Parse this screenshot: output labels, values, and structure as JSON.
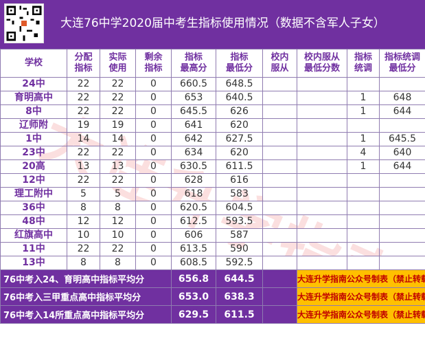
{
  "title": "大连76中学2020届中考生指标使用情况（数据不含军人子女）",
  "header": {
    "school": "学校",
    "alloc": [
      "分配",
      "指标"
    ],
    "used": [
      "实际",
      "使用"
    ],
    "remain": [
      "剩余",
      "指标"
    ],
    "max": [
      "指标",
      "最高分"
    ],
    "min": [
      "指标",
      "最低分"
    ],
    "in_school": [
      "校内",
      "服从"
    ],
    "in_school_min": [
      "校内服从",
      "最低分数"
    ],
    "adjust": [
      "指标",
      "统调"
    ],
    "adjust_min": [
      "指标统调",
      "最低分"
    ]
  },
  "rows": [
    {
      "school": "24中",
      "alloc": "22",
      "used": "22",
      "remain": "0",
      "max": "660.5",
      "min": "648.5",
      "adjust": "",
      "adjust_min": ""
    },
    {
      "school": "育明高中",
      "alloc": "22",
      "used": "22",
      "remain": "0",
      "max": "653",
      "min": "640.5",
      "adjust": "1",
      "adjust_min": "648"
    },
    {
      "school": "8中",
      "alloc": "22",
      "used": "22",
      "remain": "0",
      "max": "645.5",
      "min": "626",
      "adjust": "1",
      "adjust_min": "644"
    },
    {
      "school": "辽师附",
      "alloc": "19",
      "used": "19",
      "remain": "0",
      "max": "641",
      "min": "620",
      "adjust": "",
      "adjust_min": ""
    },
    {
      "school": "1中",
      "alloc": "14",
      "used": "14",
      "remain": "0",
      "max": "642",
      "min": "627.5",
      "adjust": "1",
      "adjust_min": "645.5"
    },
    {
      "school": "23中",
      "alloc": "22",
      "used": "22",
      "remain": "0",
      "max": "634",
      "min": "620",
      "adjust": "4",
      "adjust_min": "640"
    },
    {
      "school": "20高",
      "alloc": "13",
      "used": "13",
      "remain": "0",
      "max": "630.5",
      "min": "611.5",
      "adjust": "1",
      "adjust_min": "644"
    },
    {
      "school": "12中",
      "alloc": "22",
      "used": "22",
      "remain": "0",
      "max": "628",
      "min": "616",
      "adjust": "",
      "adjust_min": ""
    },
    {
      "school": "理工附中",
      "alloc": "5",
      "used": "5",
      "remain": "0",
      "max": "618",
      "min": "583",
      "adjust": "",
      "adjust_min": ""
    },
    {
      "school": "36中",
      "alloc": "8",
      "used": "8",
      "remain": "0",
      "max": "620.5",
      "min": "604.5",
      "adjust": "",
      "adjust_min": ""
    },
    {
      "school": "48中",
      "alloc": "12",
      "used": "12",
      "remain": "0",
      "max": "612.5",
      "min": "593.5",
      "adjust": "",
      "adjust_min": ""
    },
    {
      "school": "红旗高中",
      "alloc": "10",
      "used": "10",
      "remain": "0",
      "max": "606",
      "min": "587",
      "adjust": "",
      "adjust_min": ""
    },
    {
      "school": "11中",
      "alloc": "22",
      "used": "22",
      "remain": "0",
      "max": "613.5",
      "min": "590",
      "adjust": "",
      "adjust_min": ""
    },
    {
      "school": "13中",
      "alloc": "8",
      "used": "8",
      "remain": "0",
      "max": "608.5",
      "min": "592.5",
      "adjust": "",
      "adjust_min": ""
    }
  ],
  "summary": [
    {
      "label": "76中考入24、育明高中指标平均分",
      "max": "656.8",
      "min": "644.5",
      "note": "大连升学指南公众号制表（禁止转载）"
    },
    {
      "label": "76中考入三甲重点高中指标平均分",
      "max": "653.0",
      "min": "638.3",
      "note": "大连升学指南公众号制表（禁止转载）"
    },
    {
      "label": "76中考入14所重点高中指标平均分",
      "max": "629.5",
      "min": "611.5",
      "note": "大连升学指南公众号制表（禁止转载）"
    }
  ],
  "watermark": "大连升学指南",
  "colors": {
    "header_bg": "#7030a0",
    "note_bg": "#ffc000",
    "note_text": "#c00000"
  }
}
